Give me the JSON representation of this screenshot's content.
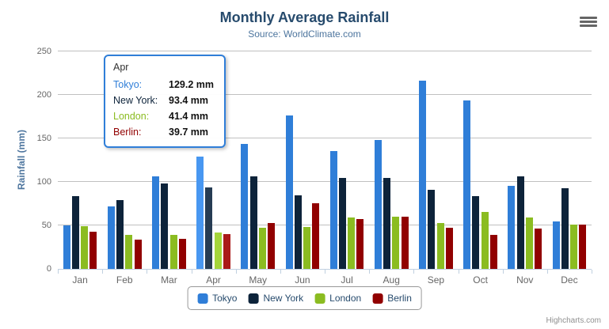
{
  "chart": {
    "title": "Monthly Average Rainfall",
    "subtitle": "Source: WorldClimate.com",
    "credits": "Highcharts.com",
    "menu_icon": "hamburger-menu-icon"
  },
  "chart_data": {
    "type": "bar",
    "title": "Monthly Average Rainfall",
    "subtitle": "Source: WorldClimate.com",
    "xlabel": "",
    "ylabel": "Rainfall (mm)",
    "ylim": [
      0,
      250
    ],
    "tick_interval": 50,
    "grid": true,
    "legend_position": "bottom",
    "categories": [
      "Jan",
      "Feb",
      "Mar",
      "Apr",
      "May",
      "Jun",
      "Jul",
      "Aug",
      "Sep",
      "Oct",
      "Nov",
      "Dec"
    ],
    "series": [
      {
        "name": "Tokyo",
        "color": "#2f7ed8",
        "values": [
          49.9,
          71.5,
          106.4,
          129.2,
          144.0,
          176.0,
          135.6,
          148.5,
          216.4,
          194.1,
          95.6,
          54.4
        ]
      },
      {
        "name": "New York",
        "color": "#0d233a",
        "values": [
          83.6,
          78.8,
          98.5,
          93.4,
          106.0,
          84.5,
          105.0,
          104.3,
          91.2,
          83.5,
          106.6,
          92.3
        ]
      },
      {
        "name": "London",
        "color": "#8bbc21",
        "values": [
          48.9,
          38.8,
          39.3,
          41.4,
          47.0,
          48.3,
          59.0,
          59.6,
          52.4,
          65.2,
          59.3,
          51.2
        ]
      },
      {
        "name": "Berlin",
        "color": "#910000",
        "values": [
          42.4,
          33.2,
          34.5,
          39.7,
          52.6,
          75.5,
          57.4,
          60.4,
          47.6,
          39.1,
          46.8,
          51.1
        ]
      }
    ]
  },
  "tooltip": {
    "category": "Apr",
    "border_color": "#2f7ed8",
    "rows": [
      {
        "label": "Tokyo:",
        "value": "129.2 mm",
        "color": "#2f7ed8"
      },
      {
        "label": "New York:",
        "value": "93.4 mm",
        "color": "#0d233a"
      },
      {
        "label": "London:",
        "value": "41.4 mm",
        "color": "#8bbc21"
      },
      {
        "label": "Berlin:",
        "value": "39.7 mm",
        "color": "#910000"
      }
    ]
  },
  "colors": {
    "title_text": "#274b6d",
    "subtitle_text": "#4d759e",
    "axis_line": "#C0D0E0",
    "grid_line": "#C0C0C0",
    "axis_label_text": "#666666",
    "y_axis_title_text": "#4d759e",
    "legend_text": "#274b6d",
    "credits_text": "#909090"
  }
}
